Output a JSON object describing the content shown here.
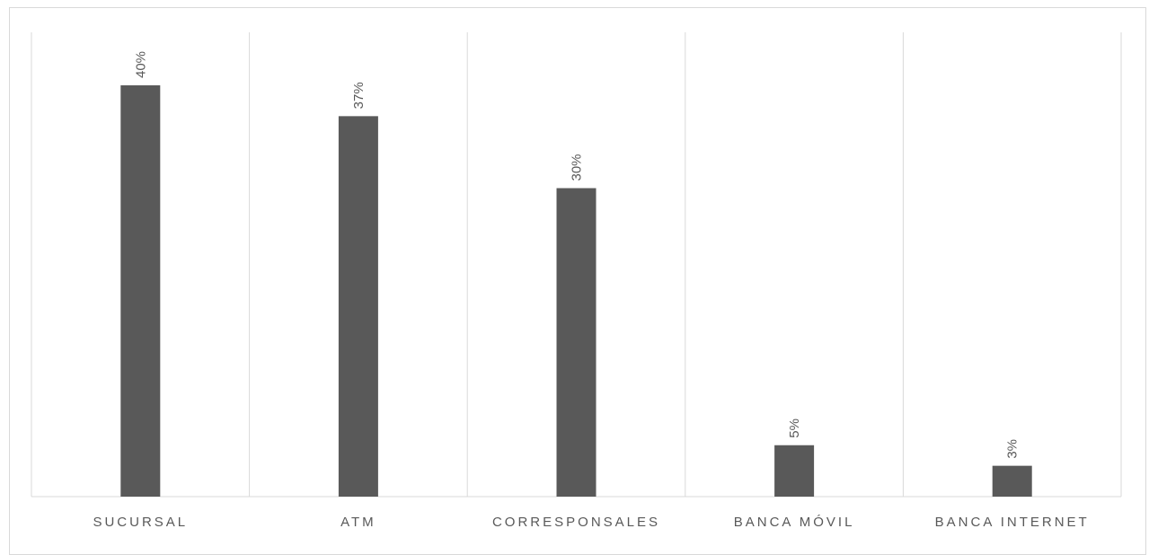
{
  "chart_data": {
    "type": "bar",
    "categories": [
      "SUCURSAL",
      "ATM",
      "CORRESPONSALES",
      "BANCA MÓVIL",
      "BANCA INTERNET"
    ],
    "values": [
      40,
      37,
      30,
      5,
      3
    ],
    "value_labels": [
      "40%",
      "37%",
      "30%",
      "5%",
      "3%"
    ],
    "title": "",
    "xlabel": "",
    "ylabel": "",
    "ylim": [
      0,
      45
    ],
    "grid": "vertical category separators",
    "legend": "none",
    "colors": {
      "bar": "#595959",
      "grid": "#d9d9d9",
      "text": "#595959"
    }
  }
}
